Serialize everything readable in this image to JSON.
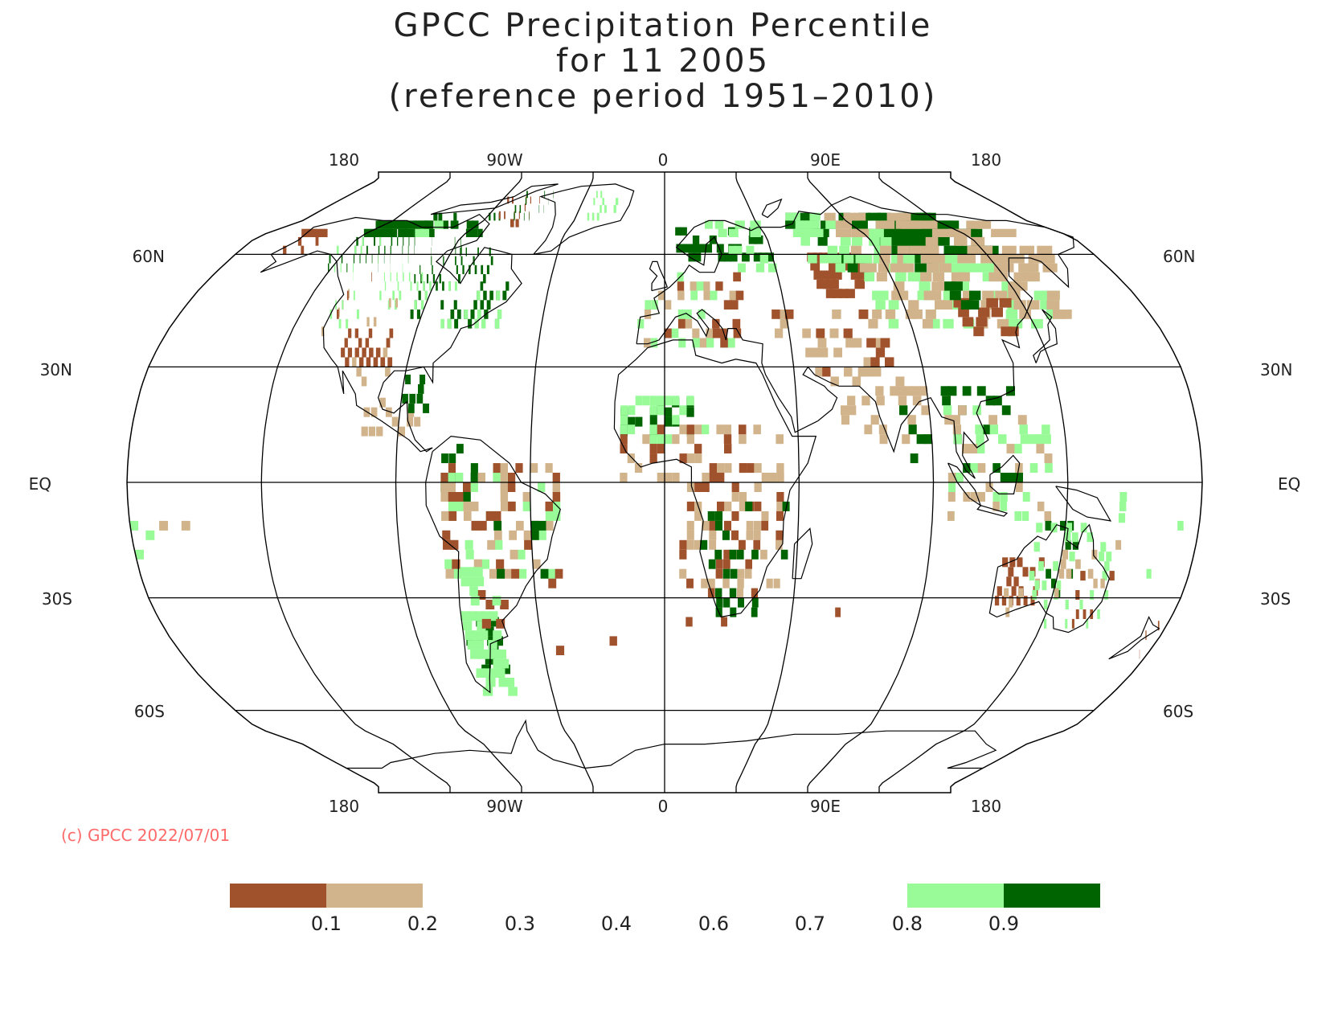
{
  "title": {
    "line1": "GPCC Precipitation Percentile",
    "line2": "for 11 2005",
    "line3": "(reference period 1951–2010)"
  },
  "map": {
    "projection": "Robinson",
    "lon_labels_top": [
      "180",
      "90W",
      "0",
      "90E",
      "180"
    ],
    "lon_labels_bottom": [
      "180",
      "90W",
      "0",
      "90E",
      "180"
    ],
    "lat_labels": [
      "60N",
      "30N",
      "EQ",
      "30S",
      "60S"
    ],
    "grid": true
  },
  "copyright": "(c) GPCC 2022/07/01",
  "legend": {
    "tick_labels": [
      "0.1",
      "0.2",
      "0.3",
      "0.4",
      "0.6",
      "0.7",
      "0.8",
      "0.9"
    ],
    "bins": [
      {
        "range": "<0.1",
        "color": "#a0522d"
      },
      {
        "range": "0.1-0.2",
        "color": "#d2b48c"
      },
      {
        "range": "0.8-0.9",
        "color": "#98fb98"
      },
      {
        "range": ">0.9",
        "color": "#006400"
      }
    ]
  },
  "colors": {
    "very_dry": "#a0522d",
    "dry": "#d2b48c",
    "wet": "#98fb98",
    "very_wet": "#006400",
    "copyright": "#ff6a6a"
  }
}
